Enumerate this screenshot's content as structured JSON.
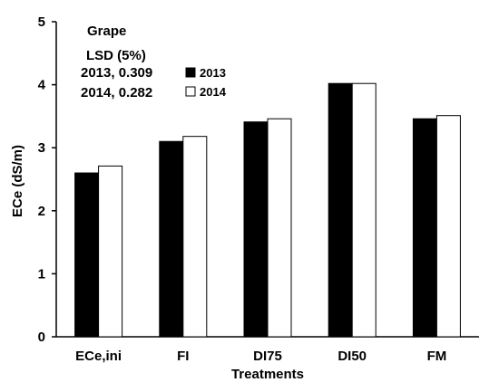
{
  "chart_data": {
    "type": "bar",
    "title": "",
    "xlabel": "Treatments",
    "ylabel": "ECe (dS/m)",
    "ylim": [
      0,
      5
    ],
    "yticks": [
      "0",
      "1",
      "2",
      "3",
      "4",
      "5"
    ],
    "categories": [
      "ECe,ini",
      "FI",
      "DI75",
      "DI50",
      "FM"
    ],
    "series": [
      {
        "name": "2013",
        "color": "#000000",
        "values": [
          2.6,
          3.1,
          3.41,
          4.02,
          3.46
        ]
      },
      {
        "name": "2014",
        "color": "#ffffff",
        "values": [
          2.71,
          3.18,
          3.46,
          4.02,
          3.51
        ]
      }
    ],
    "grid": false,
    "legend_position": "top-left",
    "annotations": {
      "crop": "Grape",
      "lsd_label": "LSD (5%)",
      "lsd_2013": "2013, 0.309",
      "lsd_2014": "2014, 0.282"
    }
  }
}
